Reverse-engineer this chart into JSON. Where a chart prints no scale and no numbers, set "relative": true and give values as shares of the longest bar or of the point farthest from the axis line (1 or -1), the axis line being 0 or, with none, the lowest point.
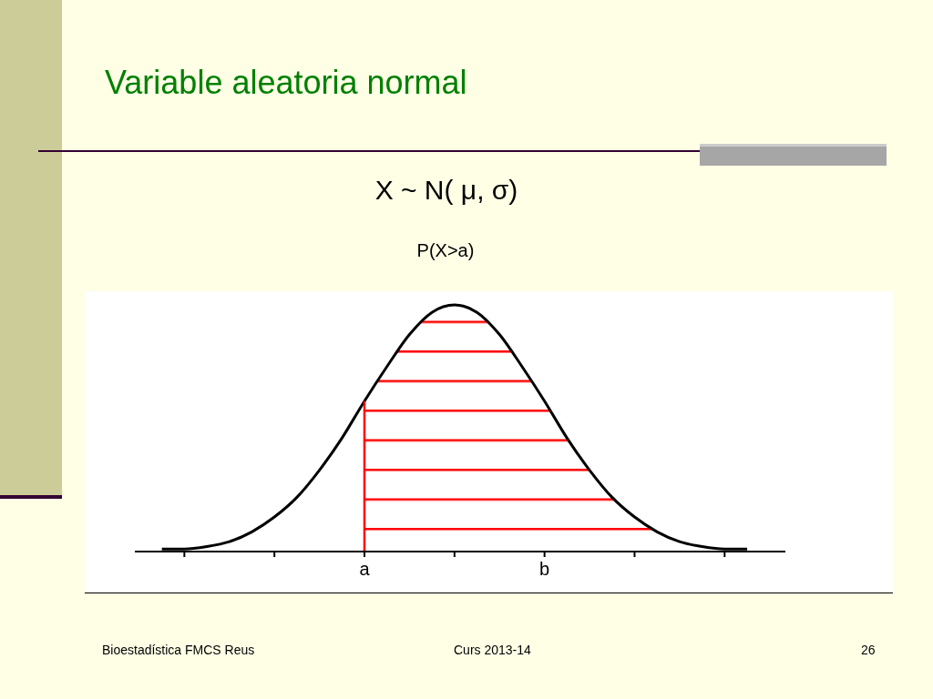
{
  "chart_data": {
    "type": "line",
    "title": "Variable aleatoria normal",
    "subtitle": "X ~ N( μ, σ)",
    "annotations": [
      "P(X>a)",
      "Bioestadística FMCS Reus",
      "Curs 2013-14",
      "26"
    ],
    "relative": true,
    "marker": "none",
    "line_style": "solid",
    "categories": [
      null,
      null,
      null,
      null,
      null,
      null,
      null,
      null,
      null,
      "a",
      null,
      null,
      null,
      null,
      null,
      null,
      null,
      "b",
      null,
      null,
      null,
      null,
      null,
      null,
      null,
      null,
      null
    ],
    "series": [
      {
        "type": "line",
        "color": "#000000",
        "values": [
          0.01,
          0.01,
          0.02,
          0.04,
          0.08,
          0.14,
          0.22,
          0.33,
          0.46,
          0.61,
          0.75,
          0.88,
          0.97,
          1,
          0.97,
          0.88,
          0.75,
          0.61,
          0.46,
          0.33,
          0.22,
          0.14,
          0.08,
          0.04,
          0.02,
          0.01,
          0.01
        ]
      },
      {
        "type": "area",
        "color": "#ff0000",
        "values": [
          null,
          null,
          null,
          null,
          null,
          null,
          null,
          null,
          null,
          0.61,
          0.75,
          0.88,
          0.97,
          1,
          0.97,
          0.88,
          0.75,
          0.61,
          0.46,
          0.33,
          0.22,
          0.14,
          0.08,
          0.04,
          0.02,
          0.01,
          0.01
        ]
      }
    ]
  }
}
